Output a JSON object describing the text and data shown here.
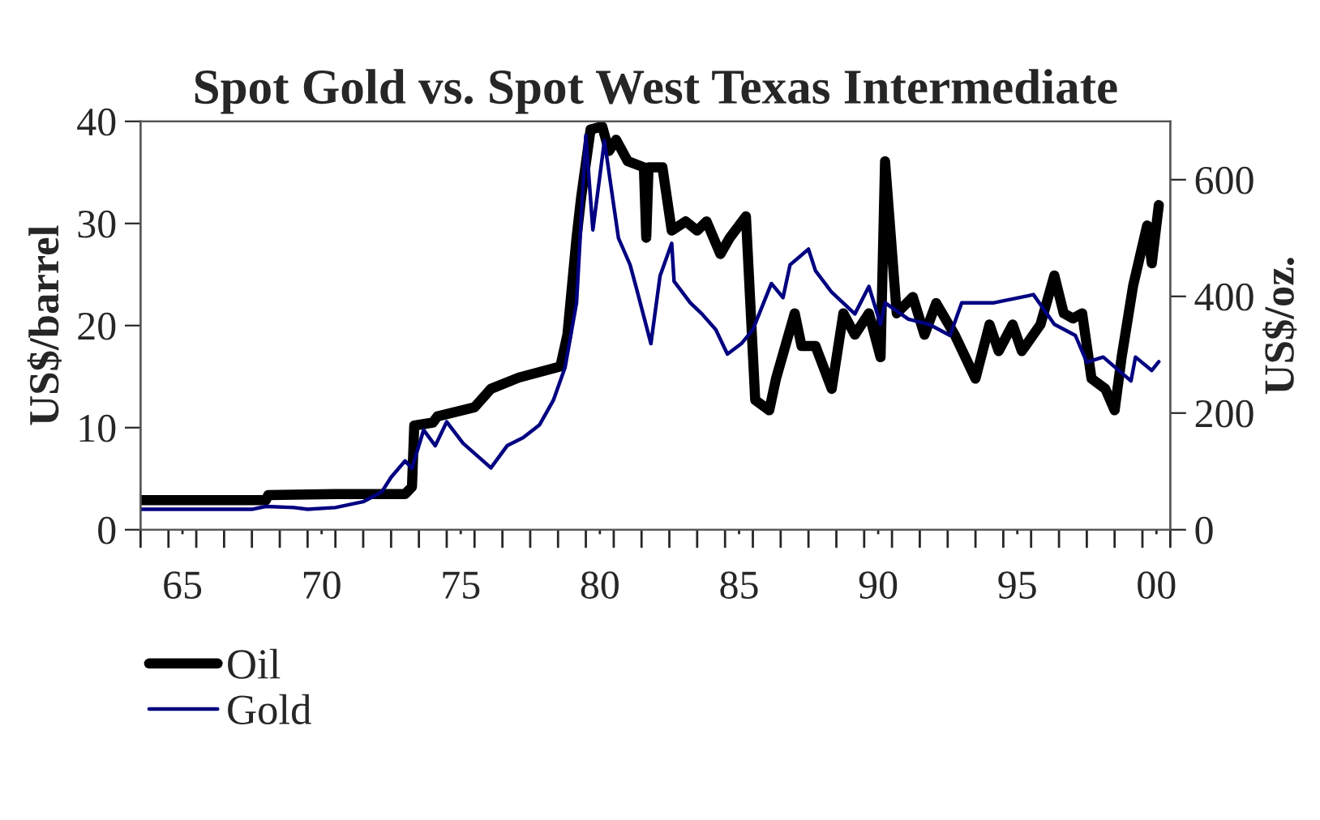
{
  "chart_data": {
    "type": "line",
    "title": "Spot Gold vs. Spot West Texas Intermediate",
    "ylabel": "US$/barrel",
    "y2label": "US$/oz.",
    "xlim": [
      "1963-07-01",
      "2000-07-01"
    ],
    "ylim": [
      0,
      40
    ],
    "yticks": [
      0,
      10,
      20,
      30,
      40
    ],
    "y2lim": [
      0,
      700
    ],
    "y2ticks": [
      0,
      200,
      400,
      600
    ],
    "xticks": [
      {
        "value": "1963-07-01",
        "label": null
      },
      {
        "value": "1964-07-01",
        "label": null
      },
      {
        "value": "1965-07-01",
        "label": null
      },
      {
        "value": "1966-07-01",
        "label": null
      },
      {
        "value": "1967-07-01",
        "label": null
      },
      {
        "value": "1968-07-01",
        "label": null
      },
      {
        "value": "1969-07-01",
        "label": null
      },
      {
        "value": "1970-07-01",
        "label": null
      },
      {
        "value": "1971-07-01",
        "label": null
      },
      {
        "value": "1972-07-01",
        "label": null
      },
      {
        "value": "1973-07-01",
        "label": null
      },
      {
        "value": "1974-07-01",
        "label": null
      },
      {
        "value": "1975-07-01",
        "label": null
      },
      {
        "value": "1976-07-01",
        "label": null
      },
      {
        "value": "1977-07-01",
        "label": null
      },
      {
        "value": "1978-07-01",
        "label": null
      },
      {
        "value": "1979-07-01",
        "label": null
      },
      {
        "value": "1980-07-01",
        "label": null
      },
      {
        "value": "1981-07-01",
        "label": null
      },
      {
        "value": "1982-07-01",
        "label": null
      },
      {
        "value": "1983-07-01",
        "label": null
      },
      {
        "value": "1984-07-01",
        "label": null
      },
      {
        "value": "1985-07-01",
        "label": null
      },
      {
        "value": "1986-07-01",
        "label": null
      },
      {
        "value": "1987-07-01",
        "label": null
      },
      {
        "value": "1988-07-01",
        "label": null
      },
      {
        "value": "1989-07-01",
        "label": null
      },
      {
        "value": "1990-07-01",
        "label": null
      },
      {
        "value": "1991-07-01",
        "label": null
      },
      {
        "value": "1992-07-01",
        "label": null
      },
      {
        "value": "1993-07-01",
        "label": null
      },
      {
        "value": "1994-07-01",
        "label": null
      },
      {
        "value": "1995-07-01",
        "label": null
      },
      {
        "value": "1996-07-01",
        "label": null
      },
      {
        "value": "1997-07-01",
        "label": null
      },
      {
        "value": "1998-07-01",
        "label": null
      },
      {
        "value": "1999-07-01",
        "label": null
      },
      {
        "value": "2000-07-01",
        "label": null
      },
      {
        "value": "1965-01-01",
        "label": "65"
      },
      {
        "value": "1970-01-01",
        "label": "70"
      },
      {
        "value": "1975-01-01",
        "label": "75"
      },
      {
        "value": "1980-01-01",
        "label": "80"
      },
      {
        "value": "1985-01-01",
        "label": "85"
      },
      {
        "value": "1990-01-01",
        "label": "90"
      },
      {
        "value": "1995-01-01",
        "label": "95"
      },
      {
        "value": "2000-01-01",
        "label": "00"
      }
    ],
    "legend": "bottom left",
    "line_style": "solid",
    "marker": "none",
    "series": [
      {
        "name": "Oil",
        "color": "#000000",
        "x": [
          "1963-07",
          "1968-01",
          "1968-02",
          "1970-07",
          "1973-01",
          "1973-04",
          "1973-05",
          "1974-01",
          "1974-03",
          "1975-07",
          "1976-02",
          "1977-02",
          "1978-08",
          "1978-11",
          "1979-03",
          "1979-05",
          "1979-09",
          "1980-02",
          "1980-05",
          "1980-08",
          "1981-01",
          "1981-08",
          "1981-09",
          "1981-10",
          "1982-04",
          "1982-08",
          "1983-02",
          "1983-07",
          "1983-11",
          "1984-05",
          "1984-09",
          "1985-04",
          "1985-08",
          "1986-02",
          "1986-05",
          "1987-01",
          "1987-04",
          "1987-10",
          "1988-05",
          "1988-10",
          "1989-03",
          "1989-09",
          "1990-02",
          "1990-04",
          "1990-09",
          "1991-04",
          "1991-09",
          "1992-02",
          "1992-10",
          "1993-07",
          "1994-01",
          "1994-05",
          "1994-11",
          "1995-03",
          "1995-11",
          "1996-05",
          "1996-09",
          "1997-01",
          "1997-05",
          "1997-09",
          "1998-03",
          "1998-07",
          "1998-10",
          "1999-03",
          "1999-09",
          "1999-11",
          "2000-02"
        ],
        "values": [
          2.9,
          2.9,
          3.4,
          3.5,
          3.5,
          4.2,
          10.2,
          10.5,
          11.1,
          12.0,
          13.8,
          14.9,
          16.0,
          19.1,
          28.6,
          32.6,
          39.2,
          39.5,
          37.1,
          38.2,
          36.1,
          35.5,
          28.6,
          35.5,
          35.5,
          29.3,
          30.2,
          29.3,
          30.2,
          27.0,
          28.6,
          30.7,
          12.7,
          11.7,
          14.8,
          21.2,
          18.0,
          18.0,
          13.8,
          21.2,
          19.1,
          21.2,
          16.9,
          36.1,
          21.2,
          22.8,
          19.1,
          22.2,
          19.1,
          14.8,
          20.1,
          17.5,
          20.1,
          17.5,
          20.1,
          24.9,
          21.2,
          20.7,
          21.2,
          14.8,
          13.8,
          11.7,
          16.9,
          23.9,
          29.8,
          26.1,
          31.8
        ]
      },
      {
        "name": "Gold",
        "color": "#000080",
        "axis": "y2",
        "x": [
          "1963-07",
          "1967-07",
          "1968-01",
          "1969-01",
          "1969-07",
          "1970-07",
          "1971-07",
          "1972-03",
          "1972-07",
          "1973-01",
          "1973-04",
          "1973-09",
          "1974-02",
          "1974-07",
          "1975-02",
          "1976-02",
          "1976-09",
          "1977-04",
          "1977-11",
          "1978-05",
          "1978-10",
          "1979-03",
          "1979-07",
          "1979-10",
          "1980-03",
          "1980-07",
          "1980-09",
          "1981-02",
          "1981-05",
          "1981-11",
          "1982-03",
          "1982-08",
          "1982-09",
          "1983-04",
          "1983-09",
          "1984-03",
          "1984-08",
          "1985-02",
          "1985-07",
          "1986-03",
          "1986-08",
          "1986-11",
          "1987-07",
          "1987-10",
          "1988-05",
          "1989-03",
          "1989-09",
          "1990-02",
          "1990-04",
          "1991-02",
          "1991-11",
          "1992-08",
          "1993-01",
          "1994-03",
          "1995-08",
          "1996-05",
          "1997-02",
          "1997-07",
          "1998-02",
          "1999-02",
          "1999-04",
          "1999-11",
          "2000-02"
        ],
        "values": [
          35,
          35,
          40,
          38,
          35,
          38,
          48,
          65,
          90,
          118,
          105,
          171,
          144,
          185,
          148,
          106,
          144,
          158,
          180,
          222,
          278,
          389,
          676,
          514,
          667,
          556,
          500,
          454,
          411,
          319,
          435,
          491,
          426,
          389,
          370,
          343,
          301,
          319,
          343,
          422,
          398,
          454,
          481,
          444,
          407,
          370,
          417,
          352,
          389,
          361,
          352,
          333,
          389,
          389,
          403,
          352,
          333,
          287,
          296,
          255,
          296,
          273,
          288
        ]
      }
    ]
  }
}
